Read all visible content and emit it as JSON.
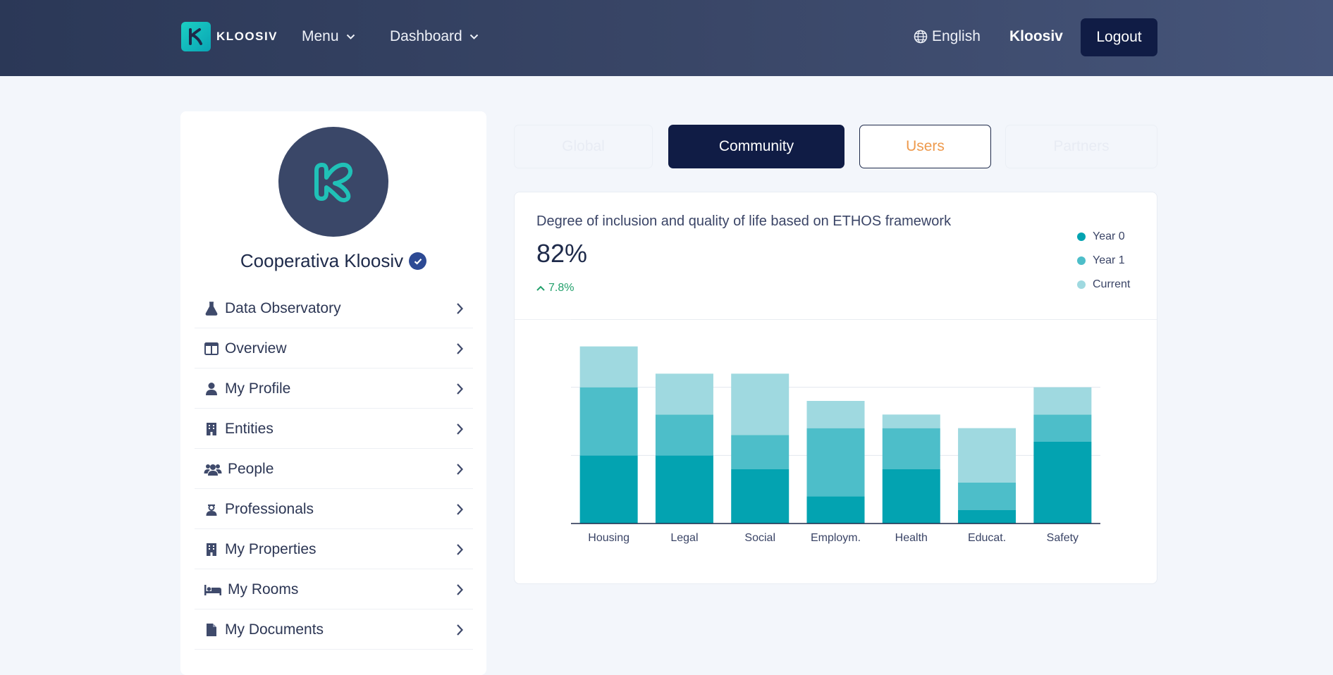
{
  "header": {
    "brand": "KLOOSIV",
    "menu_label": "Menu",
    "dashboard_label": "Dashboard",
    "language": "English",
    "user": "Kloosiv",
    "logout": "Logout"
  },
  "sidebar": {
    "org_name": "Cooperativa Kloosiv",
    "items": [
      {
        "label": "Data Observatory",
        "icon": "flask-icon"
      },
      {
        "label": "Overview",
        "icon": "layout-icon"
      },
      {
        "label": "My Profile",
        "icon": "user-icon"
      },
      {
        "label": "Entities",
        "icon": "building-icon"
      },
      {
        "label": "People",
        "icon": "people-icon"
      },
      {
        "label": "Professionals",
        "icon": "professional-icon"
      },
      {
        "label": "My Properties",
        "icon": "building-icon"
      },
      {
        "label": "My Rooms",
        "icon": "bed-icon"
      },
      {
        "label": "My Documents",
        "icon": "document-icon"
      }
    ]
  },
  "tabs": {
    "global": "Global",
    "community": "Community",
    "users": "Users",
    "partners": "Partners"
  },
  "card": {
    "title": "Degree of inclusion and quality of life based on ETHOS framework",
    "value": "82%",
    "delta": "7.8%"
  },
  "colors": {
    "year0": "#03a3b1",
    "year1": "#4dbec9",
    "current": "#9fd9e0",
    "accent_dark": "#101c45",
    "positive": "#22a06b"
  },
  "chart_data": {
    "type": "bar",
    "stacked": true,
    "categories": [
      "Housing",
      "Legal",
      "Social",
      "Employm.",
      "Health",
      "Educat.",
      "Safety"
    ],
    "series": [
      {
        "name": "Year 0",
        "values": [
          5,
          5,
          4,
          2,
          4,
          1,
          6
        ]
      },
      {
        "name": "Year 1",
        "values": [
          5,
          3,
          2.5,
          5,
          3,
          2,
          2
        ]
      },
      {
        "name": "Current",
        "values": [
          3,
          3,
          4.5,
          2,
          1,
          4,
          2
        ]
      }
    ],
    "ylim": [
      0,
      15
    ],
    "grid": true,
    "legend": "top-right"
  }
}
